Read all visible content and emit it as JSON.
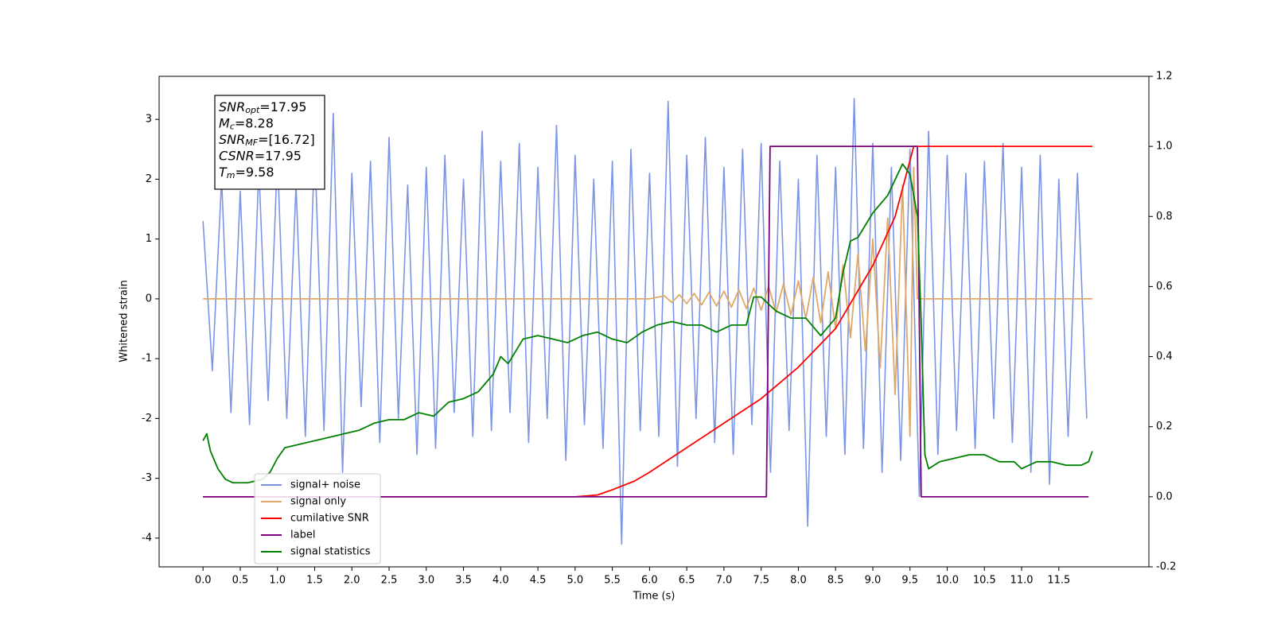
{
  "chart_data": {
    "type": "line",
    "xlabel": "Time (s)",
    "ylabel": "Whitened strain",
    "xlim": [
      -0.59,
      12.71
    ],
    "ylim": [
      -4.48,
      3.72
    ],
    "y2lim": [
      -0.2,
      1.2
    ],
    "xticks": [
      {
        "value": 0,
        "label": "0.0"
      },
      0.5,
      {
        "value": 1,
        "label": "1.0"
      },
      1.5,
      {
        "value": 2,
        "label": "2.0"
      },
      2.5,
      {
        "value": 3,
        "label": "3.0"
      },
      3.5,
      {
        "value": 4,
        "label": "4.0"
      },
      4.5,
      {
        "value": 5,
        "label": "5.0"
      },
      5.5,
      {
        "value": 6,
        "label": "6.0"
      },
      6.5,
      {
        "value": 7,
        "label": "7.0"
      },
      7.5,
      {
        "value": 8,
        "label": "8.0"
      },
      8.5,
      {
        "value": 9,
        "label": "9.0"
      },
      9.5,
      {
        "value": 10,
        "label": "10.0"
      },
      10.5,
      {
        "value": 11,
        "label": "11.0"
      },
      11.5
    ],
    "yticks": [
      -4,
      -3,
      -2,
      -1,
      0,
      1,
      2,
      3
    ],
    "y2ticks": [
      -0.2,
      {
        "value": 0,
        "label": "0.0"
      },
      0.2,
      0.4,
      0.6,
      0.8,
      {
        "value": 1,
        "label": "1.0"
      },
      1.2
    ],
    "legend": "lower left",
    "annotation": [
      {
        "symbol": "SNR",
        "subscript": "opt",
        "text": "=17.95"
      },
      {
        "symbol": "M",
        "subscript": "c",
        "text": "=8.28"
      },
      {
        "symbol": "SNR",
        "subscript": "MF",
        "text": "=[16.72]"
      },
      {
        "symbol": "CSNR",
        "text": "=17.95"
      },
      {
        "symbol": "T",
        "subscript": "m",
        "text": "=9.58"
      }
    ],
    "series": [
      {
        "name": "signal+ noise",
        "color": "#7a95e8",
        "x": [
          0,
          0.125,
          0.25,
          0.375,
          0.5,
          0.625,
          0.75,
          0.875,
          1,
          1.125,
          1.25,
          1.375,
          1.5,
          1.625,
          1.75,
          1.875,
          2,
          2.125,
          2.25,
          2.375,
          2.5,
          2.625,
          2.75,
          2.875,
          3,
          3.125,
          3.25,
          3.375,
          3.5,
          3.625,
          3.75,
          3.875,
          4,
          4.125,
          4.25,
          4.375,
          4.5,
          4.625,
          4.75,
          4.875,
          5,
          5.125,
          5.25,
          5.375,
          5.5,
          5.625,
          5.75,
          5.875,
          6,
          6.125,
          6.25,
          6.375,
          6.5,
          6.625,
          6.75,
          6.875,
          7,
          7.125,
          7.25,
          7.375,
          7.5,
          7.625,
          7.75,
          7.875,
          8,
          8.125,
          8.25,
          8.375,
          8.5,
          8.625,
          8.75,
          8.875,
          9,
          9.125,
          9.25,
          9.375,
          9.5,
          9.625,
          9.75,
          9.875,
          10,
          10.125,
          10.25,
          10.375,
          10.5,
          10.625,
          10.75,
          10.875,
          11,
          11.125,
          11.25,
          11.375,
          11.5,
          11.625,
          11.75,
          11.875
        ],
        "values": [
          1.3,
          -1.2,
          2.0,
          -1.9,
          1.8,
          -2.1,
          2.2,
          -1.7,
          2.4,
          -2.0,
          1.9,
          -2.3,
          2.6,
          -2.2,
          3.1,
          -2.9,
          2.1,
          -1.8,
          2.3,
          -2.4,
          2.7,
          -2.0,
          1.9,
          -2.6,
          2.2,
          -2.5,
          2.4,
          -1.9,
          2.0,
          -2.3,
          2.8,
          -2.2,
          2.3,
          -1.9,
          2.6,
          -2.4,
          2.2,
          -2.0,
          2.9,
          -2.7,
          2.4,
          -2.1,
          2.0,
          -2.5,
          2.3,
          -4.1,
          2.5,
          -2.2,
          2.1,
          -2.3,
          3.3,
          -2.8,
          2.4,
          -2.0,
          2.7,
          -2.4,
          2.2,
          -2.6,
          2.5,
          -2.1,
          2.6,
          -2.9,
          2.3,
          -2.2,
          2.0,
          -3.8,
          2.4,
          -2.3,
          2.2,
          -2.6,
          3.35,
          -2.5,
          2.6,
          -2.9,
          2.2,
          -2.7,
          2.5,
          -3.3,
          2.8,
          -2.6,
          2.4,
          -2.2,
          2.1,
          -2.5,
          2.3,
          -2.0,
          2.6,
          -2.4,
          2.2,
          -2.9,
          2.4,
          -3.1,
          2.0,
          -2.3,
          2.1,
          -2.0
        ]
      },
      {
        "name": "signal only",
        "color": "#e0a868",
        "x": [
          0,
          6.0,
          6.2,
          6.3,
          6.4,
          6.5,
          6.6,
          6.7,
          6.8,
          6.9,
          7.0,
          7.1,
          7.2,
          7.3,
          7.4,
          7.5,
          7.6,
          7.7,
          7.8,
          7.9,
          8.0,
          8.1,
          8.2,
          8.3,
          8.4,
          8.5,
          8.6,
          8.7,
          8.8,
          8.9,
          9.0,
          9.1,
          9.2,
          9.3,
          9.4,
          9.5,
          9.55,
          9.6,
          11.95
        ],
        "values": [
          0,
          0,
          0.05,
          -0.06,
          0.07,
          -0.08,
          0.09,
          -0.1,
          0.11,
          -0.12,
          0.13,
          -0.14,
          0.15,
          -0.16,
          0.18,
          -0.19,
          0.21,
          -0.23,
          0.25,
          -0.27,
          0.3,
          -0.33,
          0.36,
          -0.4,
          0.45,
          -0.5,
          0.57,
          -0.65,
          0.75,
          -0.87,
          1.0,
          -1.15,
          1.35,
          -1.6,
          1.9,
          -2.3,
          2.2,
          0,
          0
        ]
      },
      {
        "name": "cumilative SNR",
        "color": "#ff0000",
        "axis": "y2",
        "x": [
          0,
          5,
          5.3,
          5.5,
          5.8,
          6,
          6.5,
          7,
          7.5,
          8,
          8.5,
          9,
          9.3,
          9.55,
          9.6,
          11.95
        ],
        "values": [
          0,
          0,
          0.005,
          0.02,
          0.045,
          0.07,
          0.14,
          0.21,
          0.28,
          0.37,
          0.48,
          0.66,
          0.8,
          1.0,
          1.0,
          1.0
        ]
      },
      {
        "name": "label",
        "color": "#800080",
        "axis": "y2",
        "x": [
          0,
          7.57,
          7.62,
          9.6,
          9.65,
          11.9
        ],
        "values": [
          0,
          0,
          1,
          1,
          0,
          0
        ]
      },
      {
        "name": "signal statistics",
        "color": "#008000",
        "axis": "y2",
        "x": [
          0,
          0.05,
          0.1,
          0.2,
          0.3,
          0.4,
          0.6,
          0.8,
          0.9,
          1.0,
          1.1,
          1.3,
          1.5,
          1.7,
          1.9,
          2.1,
          2.3,
          2.5,
          2.7,
          2.9,
          3.1,
          3.3,
          3.5,
          3.7,
          3.9,
          4.0,
          4.1,
          4.3,
          4.5,
          4.7,
          4.9,
          5.1,
          5.3,
          5.5,
          5.7,
          5.9,
          6.1,
          6.3,
          6.5,
          6.7,
          6.9,
          7.1,
          7.3,
          7.4,
          7.5,
          7.7,
          7.9,
          8.1,
          8.3,
          8.5,
          8.6,
          8.7,
          8.8,
          9.0,
          9.2,
          9.4,
          9.5,
          9.6,
          9.65,
          9.7,
          9.75,
          9.9,
          10.1,
          10.3,
          10.5,
          10.7,
          10.9,
          11.0,
          11.2,
          11.4,
          11.6,
          11.8,
          11.9,
          11.95
        ],
        "values": [
          0.16,
          0.18,
          0.13,
          0.08,
          0.05,
          0.04,
          0.04,
          0.05,
          0.07,
          0.11,
          0.14,
          0.15,
          0.16,
          0.17,
          0.18,
          0.19,
          0.21,
          0.22,
          0.22,
          0.24,
          0.23,
          0.27,
          0.28,
          0.3,
          0.35,
          0.4,
          0.38,
          0.45,
          0.46,
          0.45,
          0.44,
          0.46,
          0.47,
          0.45,
          0.44,
          0.47,
          0.49,
          0.5,
          0.49,
          0.49,
          0.47,
          0.49,
          0.49,
          0.57,
          0.57,
          0.53,
          0.51,
          0.51,
          0.46,
          0.51,
          0.64,
          0.73,
          0.74,
          0.81,
          0.86,
          0.95,
          0.92,
          0.8,
          0.5,
          0.12,
          0.08,
          0.1,
          0.11,
          0.12,
          0.12,
          0.1,
          0.1,
          0.08,
          0.1,
          0.1,
          0.09,
          0.09,
          0.1,
          0.13
        ]
      }
    ]
  }
}
